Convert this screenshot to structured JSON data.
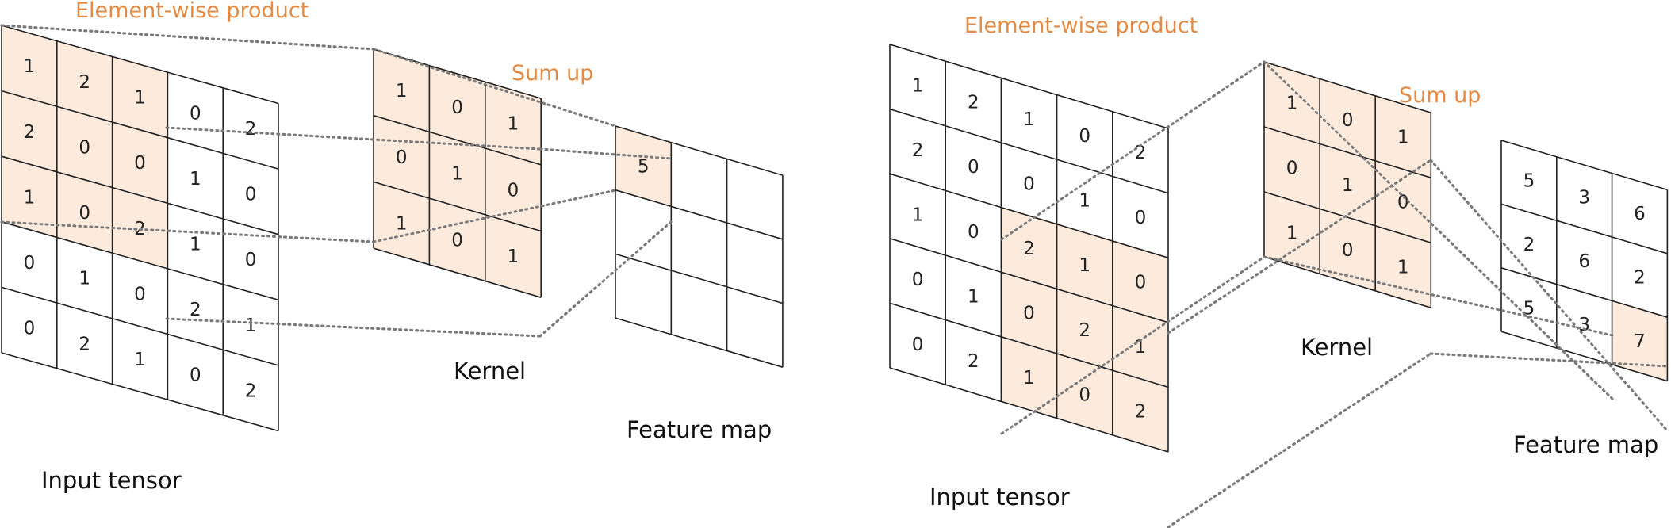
{
  "colors": {
    "highlight": "#fcebdc",
    "accent_text": "#e38b45",
    "grid": "#222222",
    "guide": "#7a7a7a"
  },
  "panels": [
    {
      "labels": {
        "product": "Element-wise product",
        "sum": "Sum up",
        "kernel": "Kernel",
        "feature": "Feature map",
        "input": "Input tensor"
      },
      "input": {
        "values": [
          [
            "1",
            "2",
            "1",
            "0",
            "2"
          ],
          [
            "2",
            "0",
            "0",
            "1",
            "0"
          ],
          [
            "1",
            "0",
            "2",
            "1",
            "0"
          ],
          [
            "0",
            "1",
            "0",
            "2",
            "1"
          ],
          [
            "0",
            "2",
            "1",
            "0",
            "2"
          ]
        ],
        "highlight_rows": [
          0,
          2
        ],
        "highlight_cols": [
          0,
          2
        ]
      },
      "kernel": {
        "values": [
          [
            "1",
            "0",
            "1"
          ],
          [
            "0",
            "1",
            "0"
          ],
          [
            "1",
            "0",
            "1"
          ]
        ]
      },
      "feature": {
        "values": [
          [
            "5",
            "",
            ""
          ],
          [
            "",
            "",
            ""
          ],
          [
            "",
            "",
            ""
          ]
        ],
        "highlight": [
          0,
          0
        ]
      }
    },
    {
      "labels": {
        "product": "Element-wise product",
        "sum": "Sum up",
        "kernel": "Kernel",
        "feature": "Feature map",
        "input": "Input tensor"
      },
      "input": {
        "values": [
          [
            "1",
            "2",
            "1",
            "0",
            "2"
          ],
          [
            "2",
            "0",
            "0",
            "1",
            "0"
          ],
          [
            "1",
            "0",
            "2",
            "1",
            "0"
          ],
          [
            "0",
            "1",
            "0",
            "2",
            "1"
          ],
          [
            "0",
            "2",
            "1",
            "0",
            "2"
          ]
        ],
        "highlight_rows": [
          2,
          4
        ],
        "highlight_cols": [
          2,
          4
        ]
      },
      "kernel": {
        "values": [
          [
            "1",
            "0",
            "1"
          ],
          [
            "0",
            "1",
            "0"
          ],
          [
            "1",
            "0",
            "1"
          ]
        ]
      },
      "feature": {
        "values": [
          [
            "5",
            "3",
            "6"
          ],
          [
            "2",
            "6",
            "2"
          ],
          [
            "5",
            "3",
            "7"
          ]
        ],
        "highlight": [
          2,
          2
        ]
      }
    }
  ]
}
